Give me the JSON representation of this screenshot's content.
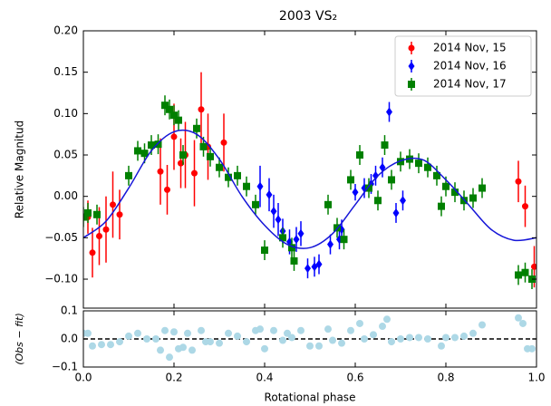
{
  "chart_data": [
    {
      "type": "errorbar",
      "title": "2003 VS₂",
      "ylabel": "Relative Magnitud",
      "xlim": [
        0,
        1
      ],
      "ylim": [
        -0.135,
        0.2
      ],
      "xticks": [
        0,
        0.2,
        0.4,
        0.6,
        0.8,
        1
      ],
      "yticks": [
        {
          "value": -0.1,
          "label": "−0.10"
        },
        {
          "value": -0.05,
          "label": "−0.05"
        },
        {
          "value": 0,
          "label": "0.00"
        },
        {
          "value": 0.05,
          "label": "0.05"
        },
        {
          "value": 0.1,
          "label": "0.10"
        },
        {
          "value": 0.15,
          "label": "0.15"
        },
        {
          "value": 0.2,
          "label": "0.20"
        }
      ],
      "legend": "upper right",
      "series": [
        {
          "name": "2014 Nov, 15",
          "color": "#ff0000",
          "marker": "circle",
          "x": [
            0.01,
            0.02,
            0.035,
            0.05,
            0.065,
            0.08,
            0.17,
            0.185,
            0.2,
            0.215,
            0.225,
            0.245,
            0.26,
            0.275,
            0.31,
            0.96,
            0.975,
            0.995
          ],
          "values": [
            -0.025,
            -0.068,
            -0.048,
            -0.04,
            -0.01,
            -0.022,
            0.03,
            0.008,
            0.072,
            0.04,
            0.05,
            0.028,
            0.105,
            0.06,
            0.065,
            0.018,
            -0.012,
            -0.085
          ],
          "errors": [
            0.02,
            0.03,
            0.035,
            0.04,
            0.04,
            0.03,
            0.04,
            0.03,
            0.04,
            0.03,
            0.04,
            0.04,
            0.045,
            0.04,
            0.035,
            0.025,
            0.025,
            0.025
          ]
        },
        {
          "name": "2014 Nov, 16",
          "color": "#0000ff",
          "marker": "diamond",
          "x": [
            0.39,
            0.41,
            0.42,
            0.43,
            0.44,
            0.455,
            0.47,
            0.48,
            0.495,
            0.51,
            0.52,
            0.545,
            0.565,
            0.57,
            0.6,
            0.62,
            0.635,
            0.645,
            0.66,
            0.675,
            0.69,
            0.705
          ],
          "values": [
            0.012,
            0.002,
            -0.018,
            -0.028,
            -0.042,
            -0.055,
            -0.052,
            -0.045,
            -0.087,
            -0.085,
            -0.082,
            -0.058,
            -0.052,
            -0.04,
            0.005,
            0.01,
            0.015,
            0.025,
            0.035,
            0.102,
            -0.02,
            -0.005
          ],
          "errors": [
            0.025,
            0.02,
            0.02,
            0.02,
            0.015,
            0.015,
            0.015,
            0.015,
            0.012,
            0.012,
            0.012,
            0.012,
            0.012,
            0.012,
            0.01,
            0.012,
            0.012,
            0.012,
            0.012,
            0.012,
            0.012,
            0.012
          ]
        },
        {
          "name": "2014 Nov, 17",
          "color": "#008000",
          "marker": "square",
          "x": [
            0,
            0.01,
            0.03,
            0.1,
            0.12,
            0.135,
            0.15,
            0.165,
            0.18,
            0.19,
            0.2,
            0.21,
            0.22,
            0.25,
            0.265,
            0.28,
            0.3,
            0.32,
            0.34,
            0.36,
            0.38,
            0.4,
            0.44,
            0.46,
            0.465,
            0.54,
            0.56,
            0.575,
            0.59,
            0.61,
            0.63,
            0.65,
            0.665,
            0.68,
            0.7,
            0.72,
            0.74,
            0.76,
            0.78,
            0.79,
            0.8,
            0.82,
            0.84,
            0.86,
            0.88,
            0.96,
            0.975,
            0.99
          ],
          "values": [
            -0.025,
            -0.02,
            -0.022,
            0.025,
            0.055,
            0.052,
            0.062,
            0.063,
            0.11,
            0.105,
            0.098,
            0.092,
            0.05,
            0.082,
            0.06,
            0.048,
            0.035,
            0.023,
            0.025,
            0.012,
            -0.01,
            -0.065,
            -0.05,
            -0.062,
            -0.078,
            -0.01,
            -0.038,
            -0.052,
            0.02,
            0.05,
            0.01,
            -0.005,
            0.062,
            0.02,
            0.042,
            0.045,
            0.04,
            0.035,
            0.025,
            -0.012,
            0.012,
            0.005,
            -0.005,
            -0.002,
            0.01,
            -0.095,
            -0.092,
            -0.1
          ],
          "errors": [
            0.012,
            0.012,
            0.012,
            0.012,
            0.012,
            0.012,
            0.012,
            0.012,
            0.012,
            0.012,
            0.012,
            0.012,
            0.012,
            0.012,
            0.012,
            0.012,
            0.012,
            0.012,
            0.012,
            0.012,
            0.012,
            0.012,
            0.012,
            0.012,
            0.012,
            0.012,
            0.012,
            0.012,
            0.012,
            0.012,
            0.012,
            0.012,
            0.012,
            0.012,
            0.012,
            0.012,
            0.012,
            0.012,
            0.012,
            0.012,
            0.012,
            0.012,
            0.012,
            0.012,
            0.012,
            0.012,
            0.012,
            0.012
          ]
        }
      ],
      "fit": {
        "color": "#1515d8",
        "x": [
          0,
          0.05,
          0.1,
          0.15,
          0.2,
          0.25,
          0.3,
          0.35,
          0.4,
          0.45,
          0.5,
          0.55,
          0.6,
          0.65,
          0.7,
          0.75,
          0.8,
          0.85,
          0.9,
          0.95,
          1
        ],
        "values": [
          -0.05,
          -0.03,
          0.01,
          0.055,
          0.078,
          0.075,
          0.045,
          0,
          -0.035,
          -0.058,
          -0.062,
          -0.045,
          -0.01,
          0.025,
          0.043,
          0.044,
          0.02,
          -0.01,
          -0.04,
          -0.053,
          -0.05
        ]
      }
    },
    {
      "type": "scatter",
      "xlabel": "Rotational phase",
      "ylabel": "(Obs − fit)",
      "xlim": [
        0,
        1
      ],
      "ylim": [
        -0.1,
        0.1
      ],
      "hline": 0,
      "xticks": [
        {
          "value": 0,
          "label": "0.0"
        },
        {
          "value": 0.2,
          "label": "0.2"
        },
        {
          "value": 0.4,
          "label": "0.4"
        },
        {
          "value": 0.6,
          "label": "0.6"
        },
        {
          "value": 0.8,
          "label": "0.8"
        },
        {
          "value": 1,
          "label": "1.0"
        }
      ],
      "yticks": [
        {
          "value": -0.1,
          "label": "−0.1"
        },
        {
          "value": 0,
          "label": "0.0"
        },
        {
          "value": 0.1,
          "label": "0.1"
        }
      ],
      "color": "#add8e6",
      "x": [
        0,
        0.01,
        0.02,
        0.04,
        0.06,
        0.08,
        0.1,
        0.12,
        0.14,
        0.16,
        0.17,
        0.18,
        0.19,
        0.2,
        0.21,
        0.22,
        0.23,
        0.24,
        0.26,
        0.27,
        0.28,
        0.3,
        0.32,
        0.34,
        0.36,
        0.38,
        0.39,
        0.4,
        0.42,
        0.44,
        0.45,
        0.46,
        0.48,
        0.5,
        0.52,
        0.54,
        0.55,
        0.57,
        0.59,
        0.61,
        0.62,
        0.64,
        0.66,
        0.67,
        0.68,
        0.7,
        0.72,
        0.74,
        0.76,
        0.79,
        0.8,
        0.82,
        0.84,
        0.86,
        0.88,
        0.96,
        0.97,
        0.98,
        0.99
      ],
      "values": [
        0.02,
        0.02,
        -0.025,
        -0.02,
        -0.02,
        -0.01,
        0.01,
        0.02,
        0.0,
        0.0,
        -0.04,
        0.03,
        -0.065,
        0.025,
        -0.035,
        -0.03,
        0.02,
        -0.04,
        0.03,
        -0.01,
        -0.01,
        -0.015,
        0.02,
        0.01,
        -0.01,
        0.03,
        0.035,
        -0.035,
        0.03,
        -0.005,
        0.02,
        0.005,
        0.03,
        -0.025,
        -0.025,
        0.035,
        -0.005,
        -0.015,
        0.03,
        0.055,
        0.0,
        0.015,
        0.045,
        0.07,
        -0.01,
        0.0,
        0.005,
        0.005,
        0.0,
        -0.025,
        0.005,
        0.005,
        0.01,
        0.02,
        0.05,
        0.075,
        0.055,
        -0.035,
        -0.035
      ]
    }
  ]
}
